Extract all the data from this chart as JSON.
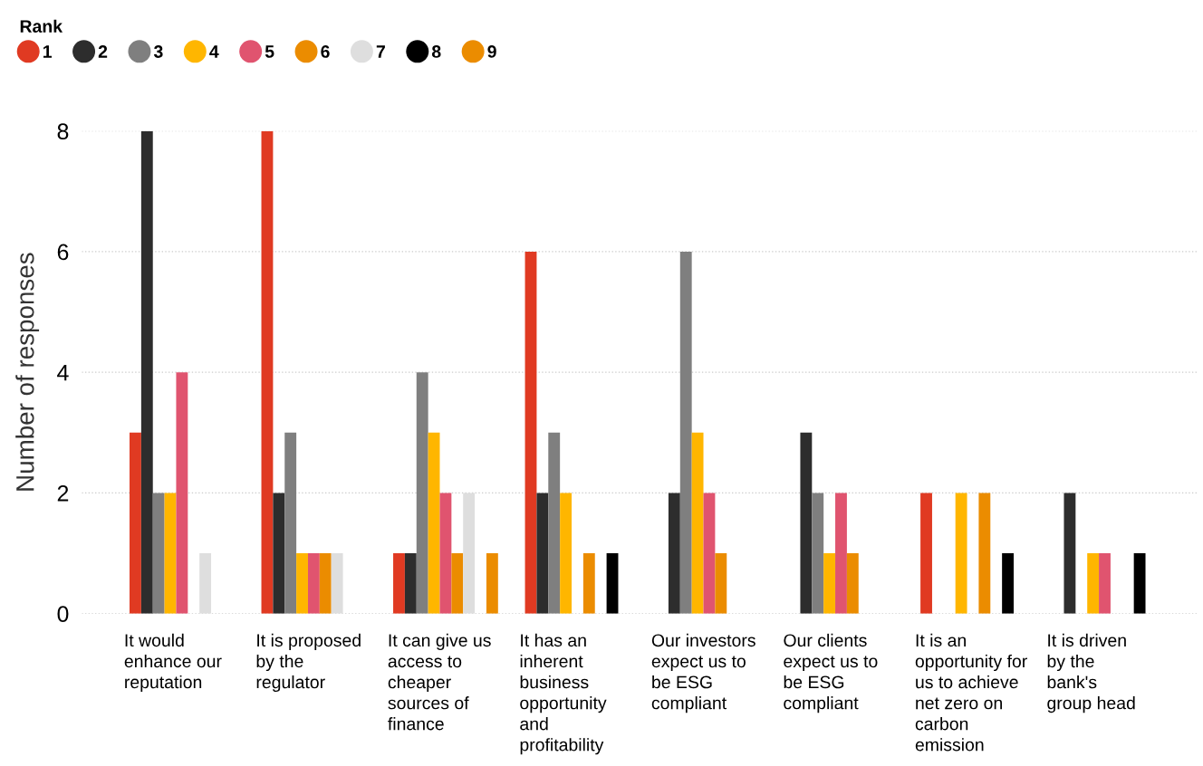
{
  "chart_data": {
    "type": "bar",
    "ylabel": "Number of responses",
    "legend_title": "Rank",
    "legend": "top left",
    "grid": "y",
    "line_style": "dotted",
    "marker": "circle",
    "categories": [
      "It would\nenhance our\nreputation",
      "It is proposed\nby the\nregulator",
      "It can give us\naccess to\ncheaper\nsources of\nfinance",
      "It has an\ninherent\nbusiness\nopportunity\nand\nprofitability",
      "Our investors\nexpect us to\nbe ESG\ncompliant",
      "Our clients\nexpect us to\nbe ESG\ncompliant",
      "It is an\nopportunity for\nus to achieve\nnet zero on\ncarbon\nemission",
      "It is driven\nby the\nbank's\ngroup head"
    ],
    "ylim": [
      0,
      8
    ],
    "yticks": [
      0,
      2,
      4,
      6,
      8
    ],
    "series": [
      {
        "name": "1",
        "color": "#e03a22",
        "values": [
          3,
          8,
          1,
          6,
          null,
          null,
          2,
          null
        ]
      },
      {
        "name": "2",
        "color": "#2d2d2d",
        "values": [
          8,
          2,
          1,
          2,
          2,
          3,
          null,
          2
        ]
      },
      {
        "name": "3",
        "color": "#7f7f7f",
        "values": [
          2,
          3,
          4,
          3,
          6,
          2,
          null,
          null
        ]
      },
      {
        "name": "4",
        "color": "#ffb600",
        "values": [
          2,
          1,
          3,
          2,
          3,
          1,
          2,
          1
        ]
      },
      {
        "name": "5",
        "color": "#e0546f",
        "values": [
          4,
          1,
          2,
          null,
          2,
          2,
          null,
          1
        ]
      },
      {
        "name": "6",
        "color": "#eb8c00",
        "values": [
          null,
          1,
          1,
          1,
          1,
          1,
          2,
          null
        ]
      },
      {
        "name": "7",
        "color": "#dedede",
        "values": [
          1,
          1,
          2,
          null,
          null,
          null,
          null,
          null
        ]
      },
      {
        "name": "8",
        "color": "#000000",
        "values": [
          null,
          null,
          null,
          1,
          null,
          null,
          1,
          1
        ]
      },
      {
        "name": "9",
        "color": "#eb8c00",
        "values": [
          null,
          null,
          1,
          null,
          null,
          null,
          null,
          null
        ]
      }
    ]
  }
}
